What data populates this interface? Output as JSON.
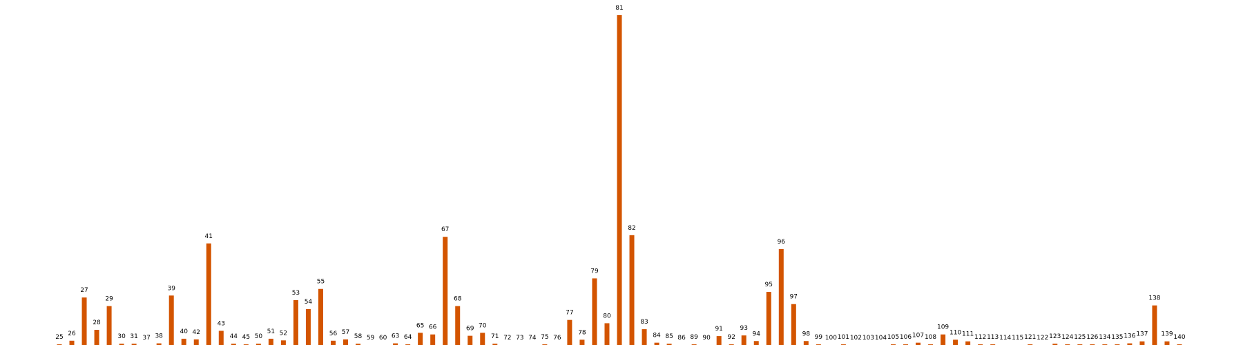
{
  "chart_data": {
    "type": "bar",
    "title": "",
    "xlabel": "",
    "ylabel": "",
    "bar_color": "#d35400",
    "label_mode": "category-name-above-bar",
    "grid": false,
    "legend": "none",
    "ylim": [
      0,
      100
    ],
    "x": [
      25,
      26,
      27,
      28,
      29,
      30,
      31,
      37,
      38,
      39,
      40,
      42,
      41,
      43,
      44,
      45,
      50,
      51,
      52,
      53,
      54,
      55,
      56,
      57,
      58,
      59,
      60,
      63,
      64,
      65,
      66,
      67,
      68,
      69,
      70,
      71,
      72,
      73,
      74,
      75,
      76,
      77,
      78,
      79,
      80,
      81,
      82,
      83,
      84,
      85,
      86,
      89,
      90,
      91,
      92,
      93,
      94,
      95,
      96,
      97,
      98,
      99,
      100,
      101,
      102,
      103,
      104,
      105,
      106,
      107,
      108,
      109,
      110,
      111,
      112,
      113,
      114,
      115,
      121,
      122,
      123,
      124,
      125,
      126,
      134,
      135,
      136,
      137,
      138,
      139,
      140
    ],
    "values": [
      0.2,
      1.3,
      14.4,
      4.6,
      11.8,
      0.4,
      0.4,
      0,
      0.5,
      15.0,
      1.9,
      1.7,
      30.8,
      4.3,
      0.4,
      0.2,
      0.4,
      1.9,
      1.4,
      13.6,
      10.9,
      17.0,
      1.3,
      1.7,
      0.4,
      0,
      0,
      0.5,
      0.2,
      3.7,
      3.2,
      32.8,
      11.8,
      2.8,
      3.7,
      0.4,
      0,
      0,
      0,
      0.2,
      0,
      7.6,
      1.6,
      20.2,
      6.6,
      100.0,
      33.3,
      4.8,
      0.7,
      0.4,
      0,
      0.2,
      0,
      2.7,
      0.2,
      2.9,
      1.2,
      16.1,
      29.1,
      12.4,
      1.2,
      0.2,
      0,
      0.2,
      0,
      0,
      0,
      0.2,
      0.2,
      0.7,
      0.2,
      3.2,
      1.6,
      1.1,
      0.2,
      0.2,
      0,
      0,
      0.2,
      0,
      0.4,
      0.2,
      0.2,
      0.2,
      0.2,
      0.2,
      0.5,
      1.1,
      12.0,
      1.1,
      0.2
    ]
  }
}
